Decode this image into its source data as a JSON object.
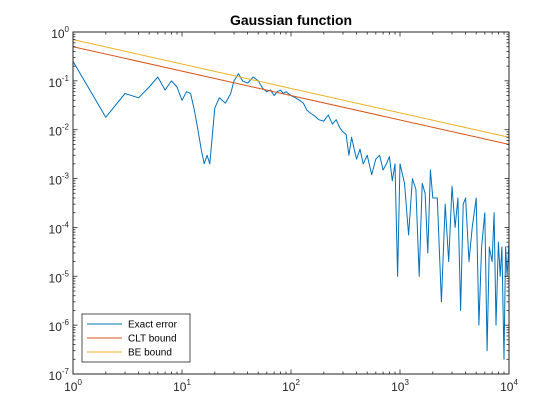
{
  "chart_data": {
    "type": "line",
    "title": "Gaussian function",
    "xlabel": "",
    "ylabel": "",
    "xscale": "log",
    "yscale": "log",
    "xlim": [
      1,
      10000
    ],
    "ylim": [
      1e-07,
      1
    ],
    "grid": false,
    "legend_position": "bottom-left",
    "x_ticks": [
      {
        "value": 1,
        "base": "10",
        "exp": "0"
      },
      {
        "value": 10,
        "base": "10",
        "exp": "1"
      },
      {
        "value": 100,
        "base": "10",
        "exp": "2"
      },
      {
        "value": 1000,
        "base": "10",
        "exp": "3"
      },
      {
        "value": 10000,
        "base": "10",
        "exp": "4"
      }
    ],
    "y_ticks": [
      {
        "value": 1e-07,
        "base": "10",
        "exp": "-7"
      },
      {
        "value": 1e-06,
        "base": "10",
        "exp": "-6"
      },
      {
        "value": 1e-05,
        "base": "10",
        "exp": "-5"
      },
      {
        "value": 0.0001,
        "base": "10",
        "exp": "-4"
      },
      {
        "value": 0.001,
        "base": "10",
        "exp": "-3"
      },
      {
        "value": 0.01,
        "base": "10",
        "exp": "-2"
      },
      {
        "value": 0.1,
        "base": "10",
        "exp": "-1"
      },
      {
        "value": 1,
        "base": "10",
        "exp": "0"
      }
    ],
    "series": [
      {
        "name": "Exact error",
        "color": "#0072BD",
        "x": [
          1,
          2,
          3,
          4,
          5,
          6,
          7,
          8,
          9,
          10,
          11,
          12,
          13,
          14,
          15,
          16,
          17,
          18,
          19,
          20,
          22,
          25,
          28,
          30,
          33,
          36,
          40,
          45,
          50,
          55,
          60,
          65,
          70,
          75,
          80,
          85,
          90,
          100,
          110,
          120,
          130,
          140,
          150,
          160,
          170,
          180,
          200,
          220,
          240,
          260,
          280,
          300,
          320,
          340,
          360,
          380,
          400,
          430,
          460,
          500,
          550,
          600,
          650,
          700,
          750,
          800,
          850,
          900,
          950,
          1000,
          1100,
          1200,
          1300,
          1400,
          1500,
          1600,
          1700,
          1800,
          1900,
          2000,
          2200,
          2400,
          2600,
          2800,
          3000,
          3200,
          3400,
          3600,
          3800,
          4000,
          4300,
          4600,
          5000,
          5300,
          5600,
          6000,
          6300,
          6600,
          7000,
          7300,
          7600,
          8000,
          8300,
          8600,
          9000,
          9300,
          9600,
          10000
        ],
        "values": [
          0.25,
          0.018,
          0.055,
          0.045,
          0.075,
          0.12,
          0.065,
          0.1,
          0.075,
          0.04,
          0.06,
          0.055,
          0.025,
          0.01,
          0.004,
          0.002,
          0.003,
          0.002,
          0.008,
          0.028,
          0.045,
          0.035,
          0.055,
          0.1,
          0.14,
          0.1,
          0.09,
          0.12,
          0.1,
          0.07,
          0.06,
          0.065,
          0.05,
          0.06,
          0.065,
          0.055,
          0.06,
          0.05,
          0.045,
          0.04,
          0.035,
          0.025,
          0.022,
          0.02,
          0.018,
          0.016,
          0.015,
          0.02,
          0.013,
          0.016,
          0.011,
          0.009,
          0.008,
          0.003,
          0.007,
          0.004,
          0.0025,
          0.004,
          0.002,
          0.003,
          0.0012,
          0.0025,
          0.003,
          0.0015,
          0.002,
          0.0028,
          0.0009,
          0.002,
          1e-05,
          0.002,
          0.0008,
          7e-05,
          0.001,
          0.0006,
          1e-05,
          0.0008,
          0.0005,
          3e-05,
          0.0015,
          0.0004,
          0.0004,
          3e-06,
          0.0003,
          2e-05,
          0.0007,
          0.0001,
          0.0004,
          2e-06,
          0.0003,
          0.0004,
          2e-05,
          0.0001,
          0.0004,
          1e-06,
          4e-05,
          0.0002,
          3e-07,
          4e-05,
          2e-05,
          0.0002,
          1e-06,
          5e-05,
          1e-05,
          4e-05,
          2e-07,
          4e-05,
          1e-05,
          5e-05
        ]
      },
      {
        "name": "CLT bound",
        "color": "#D95319",
        "x": [
          1,
          10000
        ],
        "values": [
          0.5,
          0.005
        ]
      },
      {
        "name": "BE bound",
        "color": "#EDB120",
        "x": [
          1,
          10000
        ],
        "values": [
          0.7,
          0.007
        ]
      }
    ]
  }
}
